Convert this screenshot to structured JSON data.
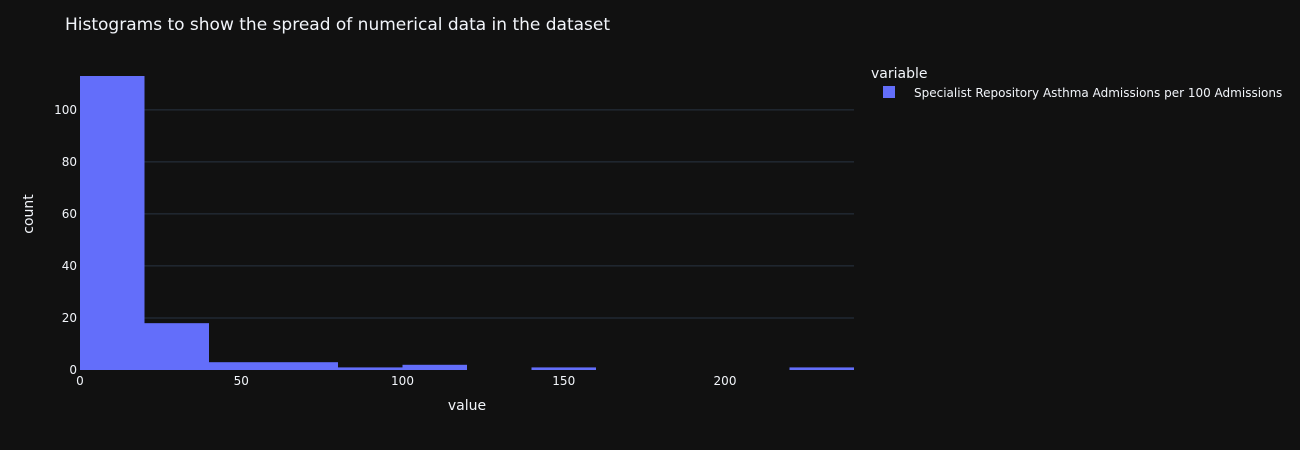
{
  "chart_data": {
    "type": "bar",
    "title": "Histograms to show the spread of numerical data in the dataset",
    "xlabel": "value",
    "ylabel": "count",
    "xlim": [
      0,
      240
    ],
    "ylim": [
      0,
      113
    ],
    "x_ticks": [
      0,
      50,
      100,
      150,
      200
    ],
    "y_ticks": [
      0,
      20,
      40,
      60,
      80,
      100
    ],
    "grid": true,
    "legend": {
      "title": "variable",
      "placement": "right"
    },
    "bin_width": 20,
    "series": [
      {
        "name": "Specialist Repository Asthma Admissions per 100 Admissions",
        "color": "#636efa",
        "bins": [
          {
            "start": 0,
            "end": 20,
            "count": 113
          },
          {
            "start": 20,
            "end": 40,
            "count": 18
          },
          {
            "start": 40,
            "end": 60,
            "count": 3
          },
          {
            "start": 60,
            "end": 80,
            "count": 3
          },
          {
            "start": 80,
            "end": 100,
            "count": 1
          },
          {
            "start": 100,
            "end": 120,
            "count": 2
          },
          {
            "start": 120,
            "end": 140,
            "count": 0
          },
          {
            "start": 140,
            "end": 160,
            "count": 1
          },
          {
            "start": 160,
            "end": 180,
            "count": 0
          },
          {
            "start": 180,
            "end": 200,
            "count": 0
          },
          {
            "start": 200,
            "end": 220,
            "count": 0
          },
          {
            "start": 220,
            "end": 240,
            "count": 1
          }
        ]
      }
    ]
  },
  "colors": {
    "background": "#111111",
    "text": "#f2f5fa",
    "grid": "#283442",
    "bar": "#636efa"
  }
}
